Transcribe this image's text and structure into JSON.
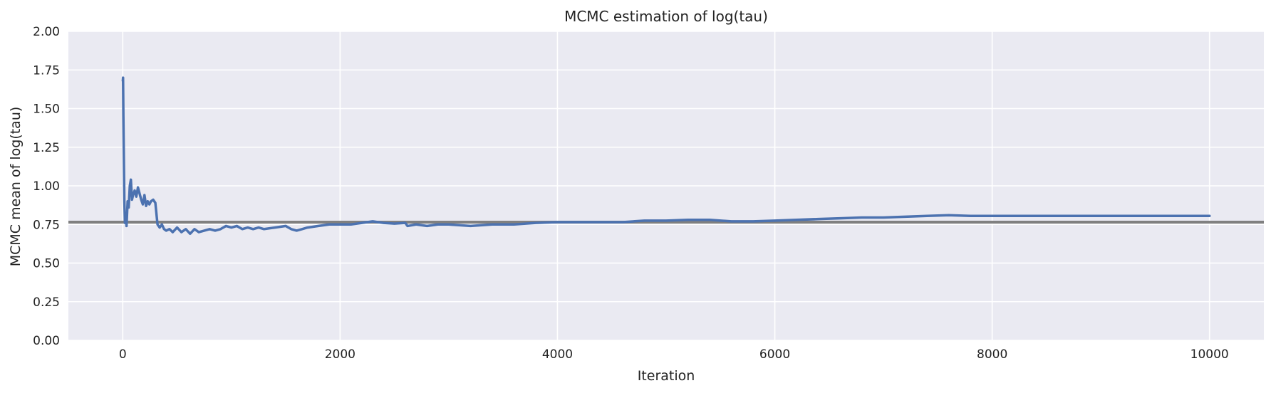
{
  "chart_data": {
    "type": "line",
    "title": "MCMC estimation of log(tau)",
    "xlabel": "Iteration",
    "ylabel": "MCMC mean of log(tau)",
    "xlim": [
      -500,
      10500
    ],
    "ylim": [
      0,
      2.0
    ],
    "xticks": [
      0,
      2000,
      4000,
      6000,
      8000,
      10000
    ],
    "xtick_labels": [
      "0",
      "2000",
      "4000",
      "6000",
      "8000",
      "10000"
    ],
    "yticks": [
      0,
      0.25,
      0.5,
      0.75,
      1.0,
      1.25,
      1.5,
      1.75,
      2.0
    ],
    "ytick_labels": [
      "0.00",
      "0.25",
      "0.50",
      "0.75",
      "1.00",
      "1.25",
      "1.50",
      "1.75",
      "2.00"
    ],
    "grid": true,
    "background": "#EAEAF2",
    "reference_line": {
      "y": 0.765,
      "color": "#808080"
    },
    "series": [
      {
        "color": "#4C72B0",
        "x": [
          1,
          3,
          6,
          10,
          15,
          20,
          28,
          35,
          45,
          55,
          65,
          75,
          85,
          95,
          110,
          125,
          140,
          155,
          170,
          185,
          200,
          215,
          230,
          245,
          260,
          280,
          300,
          320,
          340,
          360,
          380,
          400,
          430,
          460,
          500,
          540,
          580,
          620,
          660,
          700,
          750,
          800,
          850,
          900,
          950,
          1000,
          1050,
          1100,
          1150,
          1200,
          1250,
          1300,
          1400,
          1500,
          1550,
          1600,
          1650,
          1700,
          1800,
          1900,
          2000,
          2100,
          2200,
          2300,
          2400,
          2500,
          2600,
          2620,
          2700,
          2800,
          2900,
          3000,
          3200,
          3400,
          3600,
          3800,
          4000,
          4200,
          4400,
          4600,
          4800,
          5000,
          5200,
          5400,
          5600,
          5800,
          6000,
          6200,
          6400,
          6600,
          6800,
          7000,
          7200,
          7400,
          7600,
          7800,
          8000,
          8200,
          8400,
          8600,
          8800,
          9000,
          9200,
          9400,
          9600,
          9800,
          10000
        ],
        "y": [
          1.68,
          1.7,
          1.45,
          1.2,
          0.9,
          0.76,
          0.8,
          0.74,
          0.9,
          0.86,
          1.0,
          1.04,
          0.91,
          0.94,
          0.97,
          0.93,
          0.99,
          0.95,
          0.91,
          0.88,
          0.94,
          0.87,
          0.9,
          0.88,
          0.9,
          0.91,
          0.89,
          0.75,
          0.73,
          0.75,
          0.72,
          0.71,
          0.72,
          0.7,
          0.73,
          0.7,
          0.72,
          0.69,
          0.72,
          0.7,
          0.71,
          0.72,
          0.71,
          0.72,
          0.74,
          0.73,
          0.74,
          0.72,
          0.73,
          0.72,
          0.73,
          0.72,
          0.73,
          0.74,
          0.72,
          0.71,
          0.72,
          0.73,
          0.74,
          0.75,
          0.75,
          0.75,
          0.76,
          0.77,
          0.76,
          0.755,
          0.76,
          0.74,
          0.75,
          0.74,
          0.75,
          0.75,
          0.74,
          0.75,
          0.75,
          0.76,
          0.765,
          0.765,
          0.765,
          0.765,
          0.775,
          0.775,
          0.78,
          0.78,
          0.77,
          0.77,
          0.775,
          0.78,
          0.785,
          0.79,
          0.795,
          0.795,
          0.8,
          0.805,
          0.81,
          0.805,
          0.805,
          0.805,
          0.805,
          0.805,
          0.805,
          0.805,
          0.805,
          0.805,
          0.805,
          0.805,
          0.805
        ]
      }
    ]
  }
}
